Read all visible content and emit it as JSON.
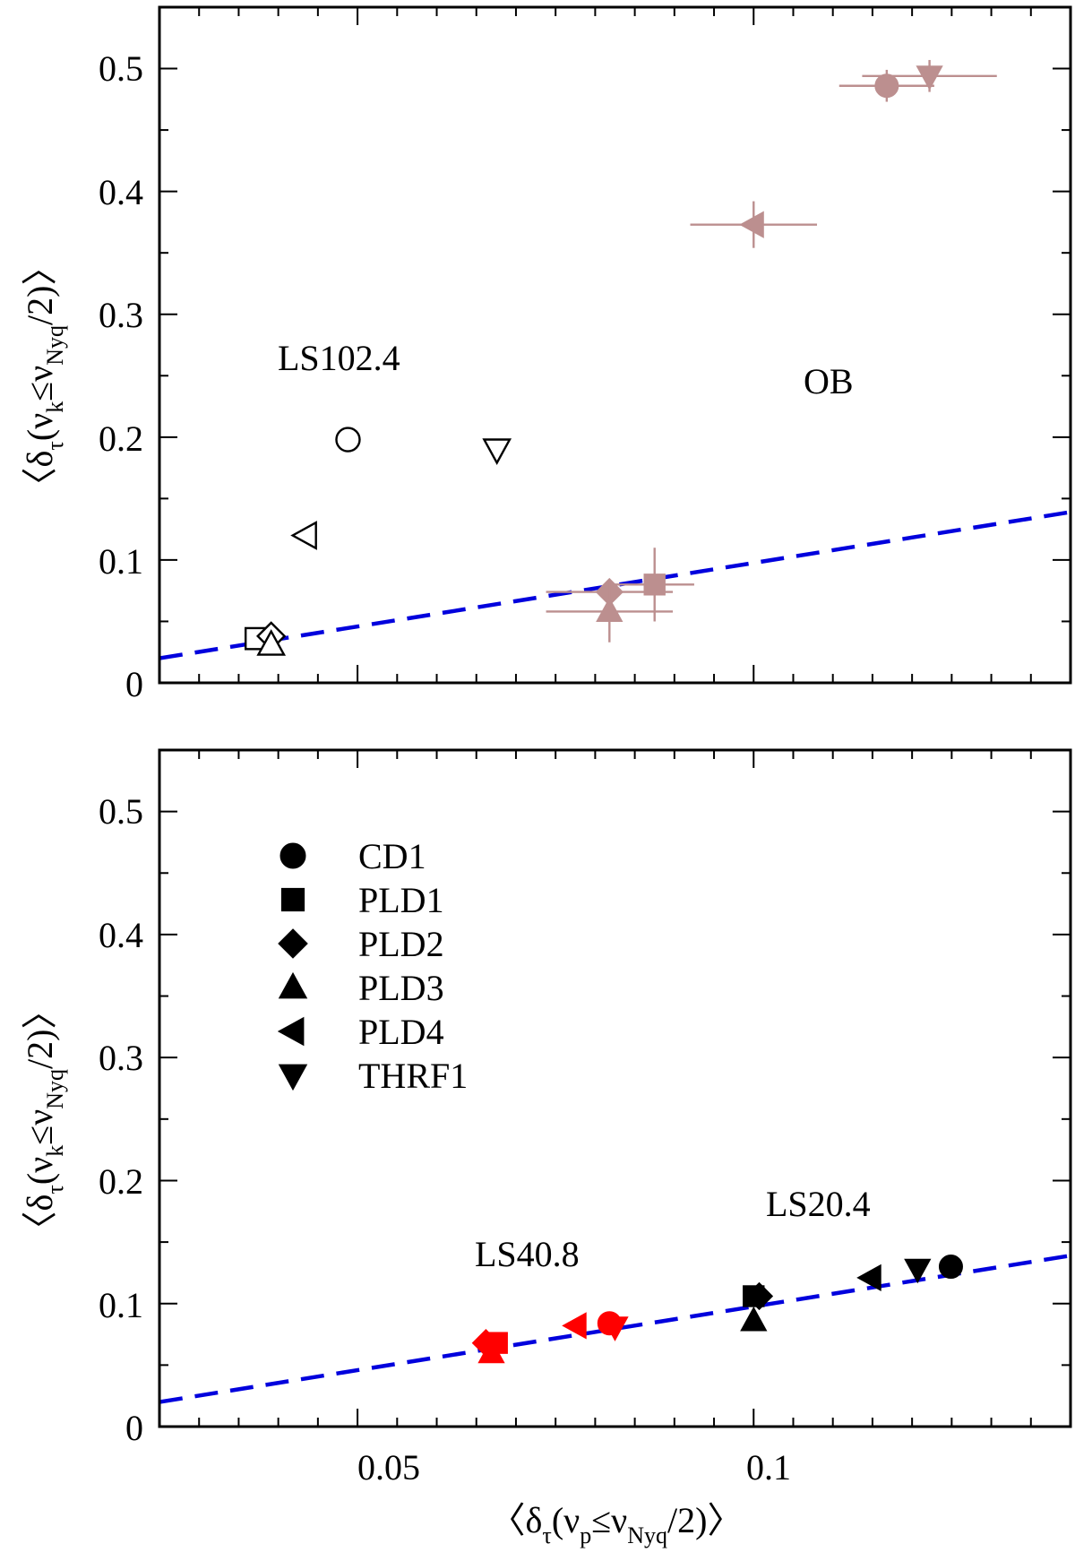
{
  "colors": {
    "ob": "#bc8f8f",
    "ls40": "#ff0000",
    "ls20": "#000000",
    "ls102": "#000000",
    "fit": "#0000dd"
  },
  "chart_data": [
    {
      "type": "scatter",
      "panel": "top",
      "xlim": [
        0.025,
        0.14
      ],
      "ylim": [
        0,
        0.55
      ],
      "x_ticks": [
        0.05,
        0.1
      ],
      "y_ticks": [
        0,
        0.1,
        0.2,
        0.3,
        0.4,
        0.5
      ],
      "y_tick_labels": [
        "0",
        "0.1",
        "0.2",
        "0.3",
        "0.4",
        "0.5"
      ],
      "ylabel": {
        "open": "〈δ",
        "tau": "τ",
        "mid": "(ν",
        "k": "k",
        "le": "≤ν",
        "nyq": "Nyq",
        "close": "/2)〉"
      },
      "annotations": [
        {
          "key": "ls102",
          "text": "LS102.4"
        },
        {
          "key": "ob",
          "text": "OB"
        }
      ],
      "fit_line": [
        {
          "x": 0.025,
          "y": 0.02
        },
        {
          "x": 0.14,
          "y": 0.139
        }
      ],
      "series": [
        {
          "name": "LS102.4",
          "color_key": "ls102",
          "filled": false,
          "points": [
            {
              "marker": "CD1",
              "x": 0.0488,
              "y": 0.198
            },
            {
              "marker": "PLD1",
              "x": 0.0372,
              "y": 0.036
            },
            {
              "marker": "PLD2",
              "x": 0.0391,
              "y": 0.038
            },
            {
              "marker": "PLD3",
              "x": 0.0391,
              "y": 0.031
            },
            {
              "marker": "PLD4",
              "x": 0.0435,
              "y": 0.12
            },
            {
              "marker": "THRF1",
              "x": 0.0676,
              "y": 0.19
            }
          ]
        },
        {
          "name": "OB",
          "color_key": "ob",
          "filled": true,
          "points": [
            {
              "marker": "CD1",
              "x": 0.1168,
              "y": 0.486,
              "xerr": 0.006,
              "yerr": 0.013
            },
            {
              "marker": "PLD1",
              "x": 0.0875,
              "y": 0.08,
              "xerr": 0.005,
              "yerr": 0.03
            },
            {
              "marker": "PLD2",
              "x": 0.0818,
              "y": 0.074,
              "xerr": 0.008,
              "yerr": 0.01
            },
            {
              "marker": "PLD3",
              "x": 0.0818,
              "y": 0.058,
              "xerr": 0.008,
              "yerr": 0.025
            },
            {
              "marker": "PLD4",
              "x": 0.1,
              "y": 0.373,
              "xerr": 0.008,
              "yerr": 0.019
            },
            {
              "marker": "THRF1",
              "x": 0.1222,
              "y": 0.494,
              "xerr": 0.0085,
              "yerr": 0.013
            }
          ]
        }
      ]
    },
    {
      "type": "scatter",
      "panel": "bottom",
      "xlim": [
        0.025,
        0.14
      ],
      "ylim": [
        0,
        0.55
      ],
      "x_ticks": [
        0.05,
        0.1
      ],
      "x_tick_labels": [
        "0.05",
        "0.1"
      ],
      "y_ticks": [
        0,
        0.1,
        0.2,
        0.3,
        0.4,
        0.5
      ],
      "y_tick_labels": [
        "0",
        "0.1",
        "0.2",
        "0.3",
        "0.4",
        "0.5"
      ],
      "xlabel": {
        "open": "〈δ",
        "tau": "τ",
        "mid": "(ν",
        "p": "p",
        "le": "≤ν",
        "nyq": "Nyq",
        "close": "/2)〉"
      },
      "ylabel": {
        "open": "〈δ",
        "tau": "τ",
        "mid": "(ν",
        "k": "k",
        "le": "≤ν",
        "nyq": "Nyq",
        "close": "/2)〉"
      },
      "annotations": [
        {
          "key": "ls20",
          "text": "LS20.4"
        },
        {
          "key": "ls40",
          "text": "LS40.8"
        }
      ],
      "fit_line": [
        {
          "x": 0.025,
          "y": 0.02
        },
        {
          "x": 0.14,
          "y": 0.139
        }
      ],
      "legend": {
        "placement": "upper-left",
        "entries": [
          {
            "marker": "CD1",
            "label": "CD1"
          },
          {
            "marker": "PLD1",
            "label": "PLD1"
          },
          {
            "marker": "PLD2",
            "label": "PLD2"
          },
          {
            "marker": "PLD3",
            "label": "PLD3"
          },
          {
            "marker": "PLD4",
            "label": "PLD4"
          },
          {
            "marker": "THRF1",
            "label": "THRF1"
          }
        ]
      },
      "series": [
        {
          "name": "LS20.4",
          "color_key": "ls20",
          "filled": true,
          "points": [
            {
              "marker": "CD1",
              "x": 0.1249,
              "y": 0.13
            },
            {
              "marker": "PLD1",
              "x": 0.1,
              "y": 0.106
            },
            {
              "marker": "PLD2",
              "x": 0.1007,
              "y": 0.106
            },
            {
              "marker": "PLD3",
              "x": 0.1,
              "y": 0.086
            },
            {
              "marker": "PLD4",
              "x": 0.1148,
              "y": 0.121
            },
            {
              "marker": "THRF1",
              "x": 0.1207,
              "y": 0.128
            }
          ]
        },
        {
          "name": "LS40.8",
          "color_key": "ls40",
          "filled": true,
          "points": [
            {
              "marker": "CD1",
              "x": 0.0818,
              "y": 0.084
            },
            {
              "marker": "PLD1",
              "x": 0.0676,
              "y": 0.068
            },
            {
              "marker": "PLD2",
              "x": 0.0662,
              "y": 0.068
            },
            {
              "marker": "PLD3",
              "x": 0.0669,
              "y": 0.06
            },
            {
              "marker": "PLD4",
              "x": 0.0776,
              "y": 0.082
            },
            {
              "marker": "THRF1",
              "x": 0.0825,
              "y": 0.081
            }
          ]
        }
      ]
    }
  ]
}
